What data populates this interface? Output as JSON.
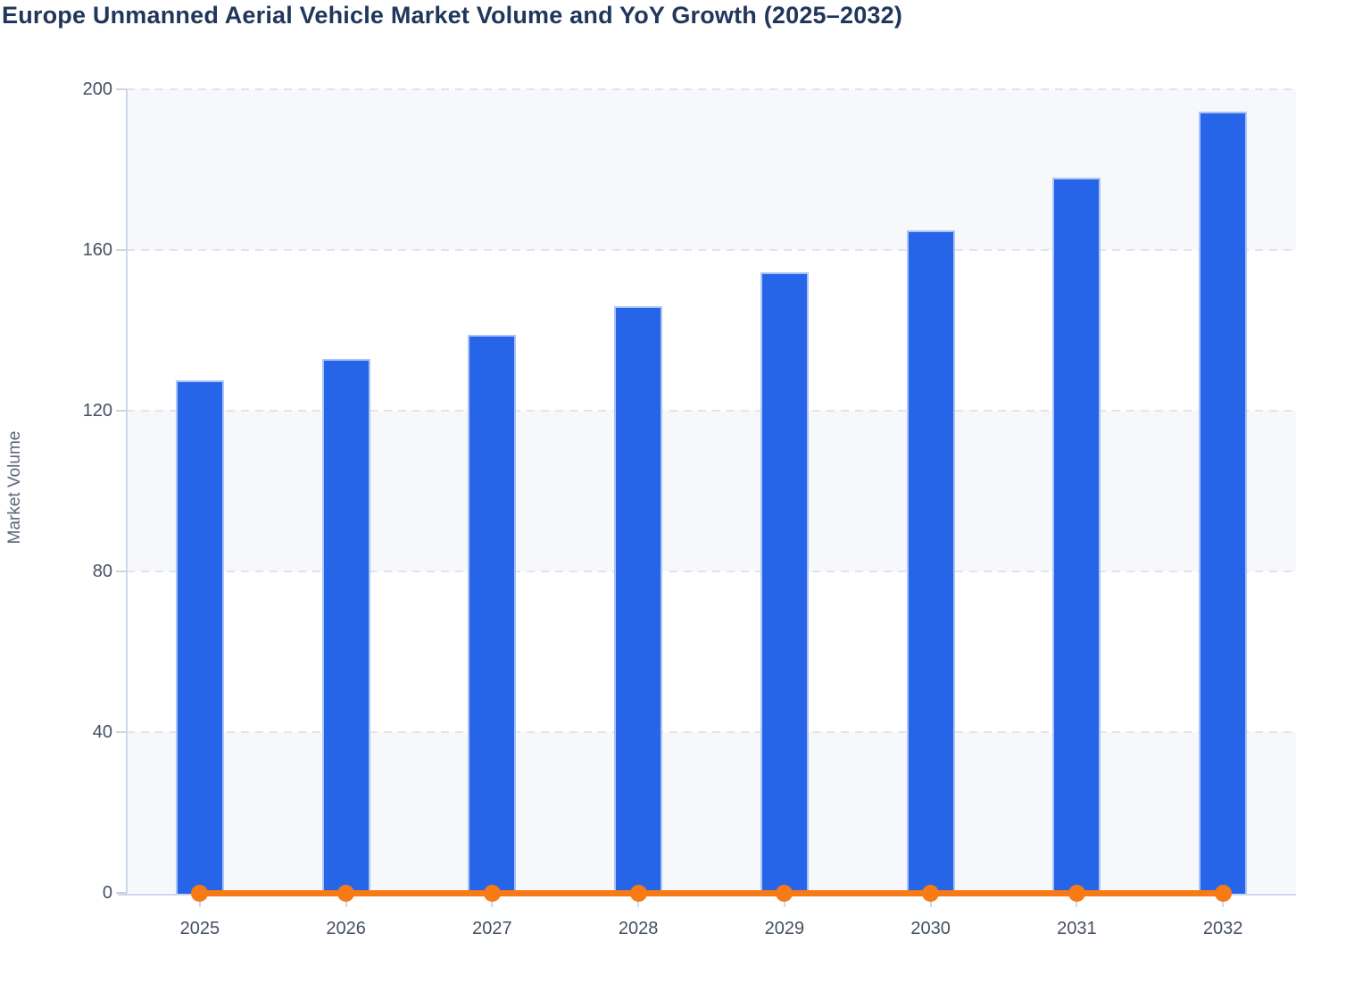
{
  "title": "Europe Unmanned Aerial Vehicle Market Volume and YoY Growth (2025–2032)",
  "chart_data": {
    "type": "bar",
    "categories": [
      "2025",
      "2026",
      "2027",
      "2028",
      "2029",
      "2030",
      "2031",
      "2032"
    ],
    "series": [
      {
        "name": "Market Volume",
        "type": "bar",
        "color": "#2765e8",
        "values": [
          127.5,
          133,
          139,
          146,
          154.5,
          165,
          178,
          194.5
        ]
      },
      {
        "name": "YoY Growth",
        "type": "line",
        "color": "#f87a15",
        "values": [
          0,
          0,
          0,
          0,
          0,
          0,
          0,
          0
        ],
        "note": "line with markers hugging the zero baseline"
      }
    ],
    "title": "Europe Unmanned Aerial Vehicle Market Volume and YoY Growth (2025–2032)",
    "xlabel": "",
    "ylabel": "Market Volume",
    "ylim": [
      0,
      200
    ],
    "yticks": [
      0,
      40,
      80,
      120,
      160,
      200
    ],
    "grid": "dashed horizontal gridlines",
    "background_bands": "alternating horizontal stripes every 40 units",
    "legend_position": "none"
  },
  "axes": {
    "y_tick_labels": [
      "0",
      "40",
      "80",
      "120",
      "160",
      "200"
    ],
    "x_tick_labels": [
      "2025",
      "2026",
      "2027",
      "2028",
      "2029",
      "2030",
      "2031",
      "2032"
    ]
  },
  "colors": {
    "bar_fill": "#2765e8",
    "bar_border": "#abc4f7",
    "line_orange": "#f87a15",
    "band_gray": "#f7f8fb",
    "axis_line": "#ccd7ed",
    "grid_dash": "#e2e4ea",
    "tick_text": "#454f63",
    "title_text": "#21365b",
    "axis_title_text": "#5d6679"
  }
}
